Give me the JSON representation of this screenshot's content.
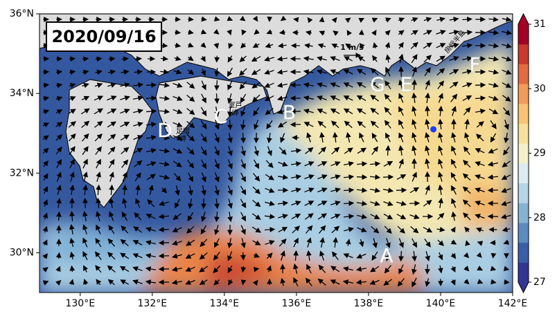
{
  "map": {
    "date": "2020/09/16",
    "lonlim": [
      128.87,
      142
    ],
    "latlim": [
      29,
      36
    ],
    "lonticks": [
      {
        "value": 130,
        "label": "130°E"
      },
      {
        "value": 132,
        "label": "132°E"
      },
      {
        "value": 134,
        "label": "134°E"
      },
      {
        "value": 136,
        "label": "136°E"
      },
      {
        "value": 138,
        "label": "138°E"
      },
      {
        "value": 140,
        "label": "140°E"
      },
      {
        "value": 142,
        "label": "142°E"
      }
    ],
    "latticks": [
      {
        "value": 30,
        "label": "30°N"
      },
      {
        "value": 32,
        "label": "32°N"
      },
      {
        "value": 34,
        "label": "34°N"
      },
      {
        "value": 36,
        "label": "36°N"
      }
    ],
    "scale_label": "1 m/s",
    "points": [
      {
        "label": "A",
        "lon": 138.5,
        "lat": 29.9
      },
      {
        "label": "B",
        "lon": 135.8,
        "lat": 33.5
      },
      {
        "label": "C",
        "lon": 133.9,
        "lat": 33.4
      },
      {
        "label": "D",
        "lon": 132.35,
        "lat": 33.05
      },
      {
        "label": "E",
        "lon": 139.05,
        "lat": 34.2
      },
      {
        "label": "F",
        "lon": 140.95,
        "lat": 34.7
      },
      {
        "label": "G",
        "lon": 138.25,
        "lat": 34.2
      }
    ],
    "place_names": [
      {
        "label": "室戸",
        "lon": 134.3,
        "lat": 33.7
      },
      {
        "label": "岬",
        "lon": 134.3,
        "lat": 33.5
      },
      {
        "label": "足摺",
        "lon": 132.85,
        "lat": 33.05
      },
      {
        "label": "岬",
        "lon": 132.85,
        "lat": 32.85
      },
      {
        "label": "房総半島",
        "lon": 140.4,
        "lat": 35.3
      }
    ],
    "station": {
      "lon": 139.8,
      "lat": 33.1,
      "color": "#1a3cff"
    },
    "colorbar": {
      "range": [
        27,
        31
      ],
      "ticks": [
        27,
        28,
        29,
        30,
        31
      ],
      "colors": [
        "#313695",
        "#3a5fa8",
        "#5b8bc0",
        "#86b2d4",
        "#b5d4e6",
        "#dcebef",
        "#f4f1c8",
        "#f7e09c",
        "#f8c373",
        "#f29c58",
        "#e36b3f",
        "#c93a2c",
        "#a50026"
      ]
    }
  }
}
